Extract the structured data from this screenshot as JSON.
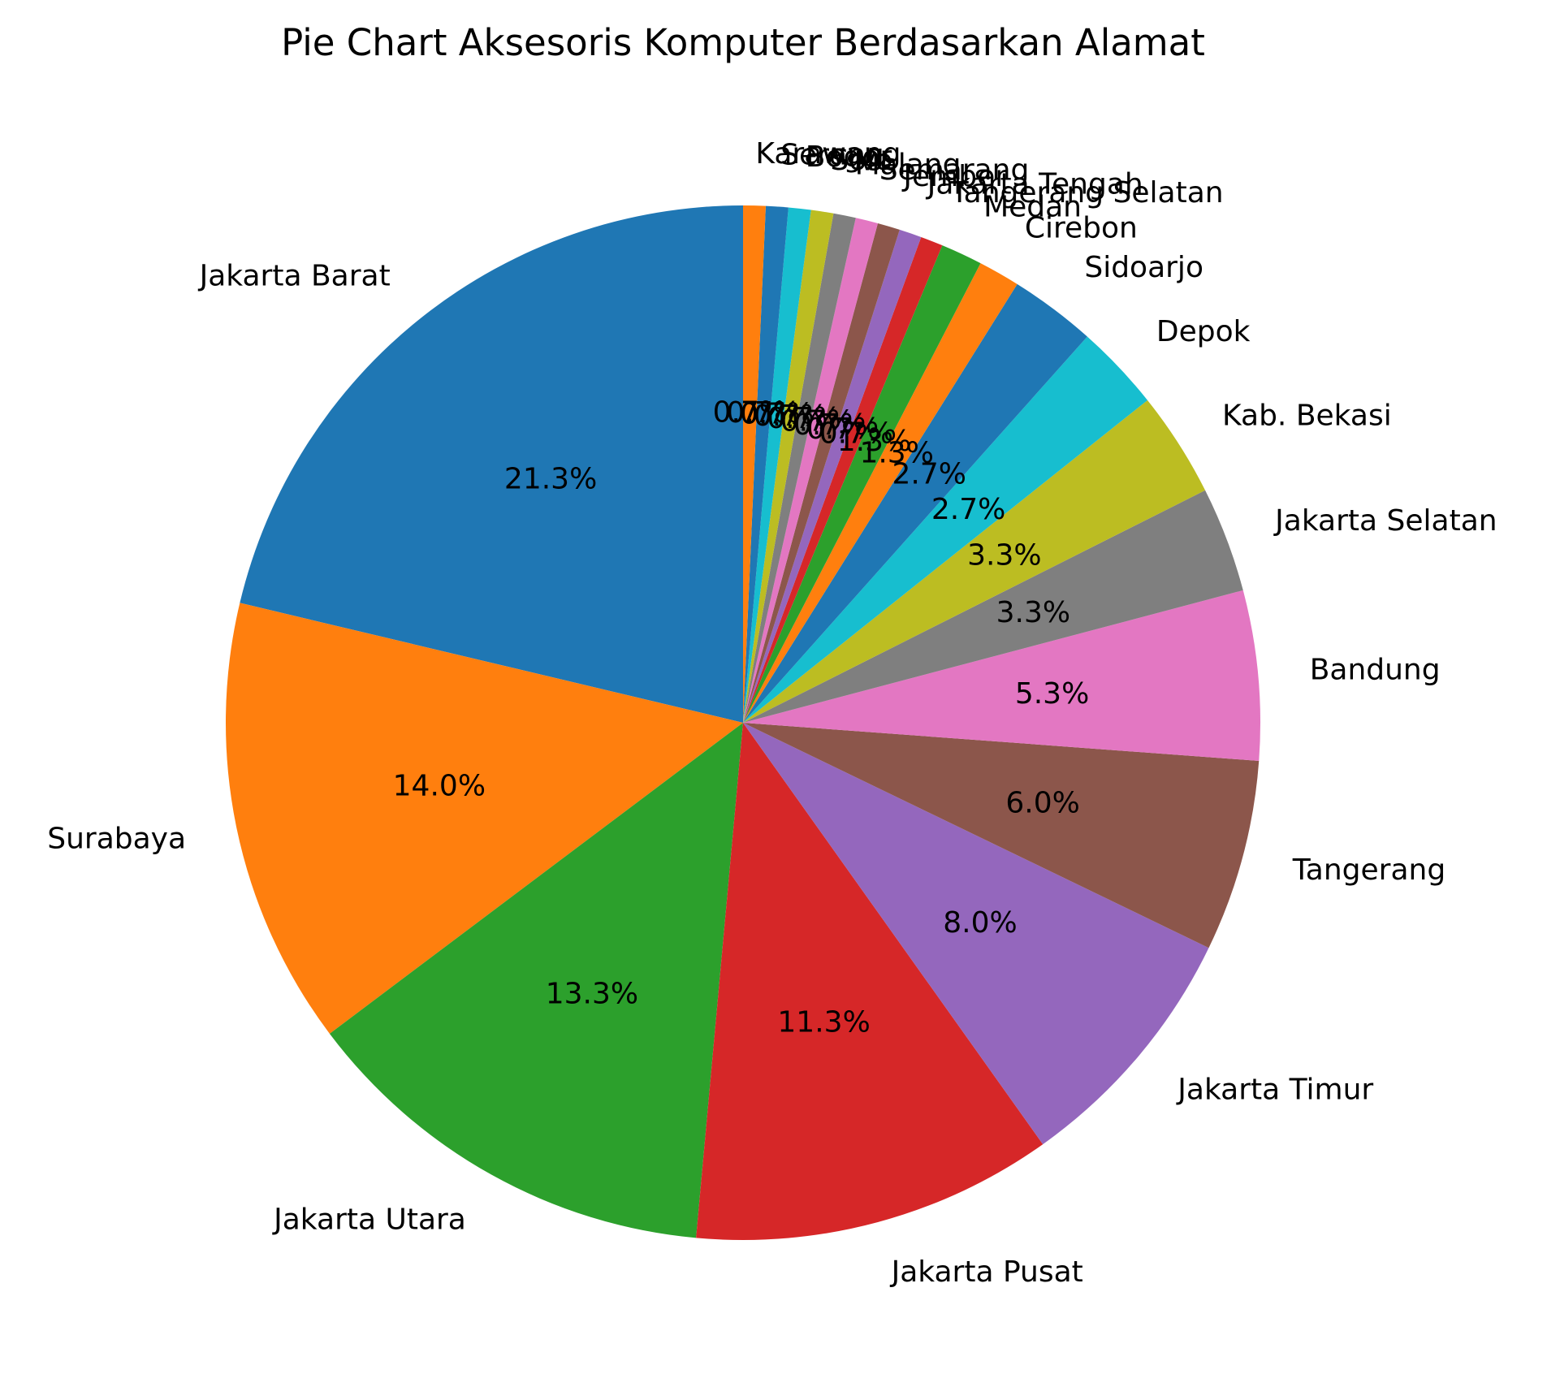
{
  "chart_data": {
    "type": "pie",
    "title": "Pie Chart Aksesoris Komputer Berdasarkan Alamat",
    "start_angle_deg": 90,
    "direction": "counterclockwise",
    "slices": [
      {
        "label": "Jakarta Barat",
        "value": 21.3,
        "pct_label": "21.3%",
        "color": "#1f77b4"
      },
      {
        "label": "Surabaya",
        "value": 14.0,
        "pct_label": "14.0%",
        "color": "#ff7f0e"
      },
      {
        "label": "Jakarta Utara",
        "value": 13.3,
        "pct_label": "13.3%",
        "color": "#2ca02c"
      },
      {
        "label": "Jakarta Pusat",
        "value": 11.3,
        "pct_label": "11.3%",
        "color": "#d62728"
      },
      {
        "label": "Jakarta Timur",
        "value": 8.0,
        "pct_label": "8.0%",
        "color": "#9467bd"
      },
      {
        "label": "Tangerang",
        "value": 6.0,
        "pct_label": "6.0%",
        "color": "#8c564b"
      },
      {
        "label": "Bandung",
        "value": 5.3,
        "pct_label": "5.3%",
        "color": "#e377c2"
      },
      {
        "label": "Jakarta Selatan",
        "value": 3.3,
        "pct_label": "3.3%",
        "color": "#7f7f7f"
      },
      {
        "label": "Kab. Bekasi",
        "value": 3.3,
        "pct_label": "3.3%",
        "color": "#bcbd22"
      },
      {
        "label": "Depok",
        "value": 2.7,
        "pct_label": "2.7%",
        "color": "#17becf"
      },
      {
        "label": "Sidoarjo",
        "value": 2.7,
        "pct_label": "2.7%",
        "color": "#1f77b4"
      },
      {
        "label": "Cirebon",
        "value": 1.3,
        "pct_label": "1.3%",
        "color": "#ff7f0e"
      },
      {
        "label": "Medan",
        "value": 1.3,
        "pct_label": "1.3%",
        "color": "#2ca02c"
      },
      {
        "label": "Tangerang Selatan",
        "value": 0.7,
        "pct_label": "0.7%",
        "color": "#d62728"
      },
      {
        "label": "Jakarta Tengah",
        "value": 0.7,
        "pct_label": "0.7%",
        "color": "#9467bd"
      },
      {
        "label": "Jember",
        "value": 0.7,
        "pct_label": "0.7%",
        "color": "#8c564b"
      },
      {
        "label": "Semarang",
        "value": 0.7,
        "pct_label": "0.7%",
        "color": "#e377c2"
      },
      {
        "label": "Malang",
        "value": 0.7,
        "pct_label": "0.7%",
        "color": "#7f7f7f"
      },
      {
        "label": "Solo",
        "value": 0.7,
        "pct_label": "0.7%",
        "color": "#bcbd22"
      },
      {
        "label": "Bogor",
        "value": 0.7,
        "pct_label": "0.7%",
        "color": "#17becf"
      },
      {
        "label": "Serang",
        "value": 0.7,
        "pct_label": "0.7%",
        "color": "#1f77b4"
      },
      {
        "label": "Karawang",
        "value": 0.7,
        "pct_label": "0.7%",
        "color": "#ff7f0e"
      }
    ]
  }
}
